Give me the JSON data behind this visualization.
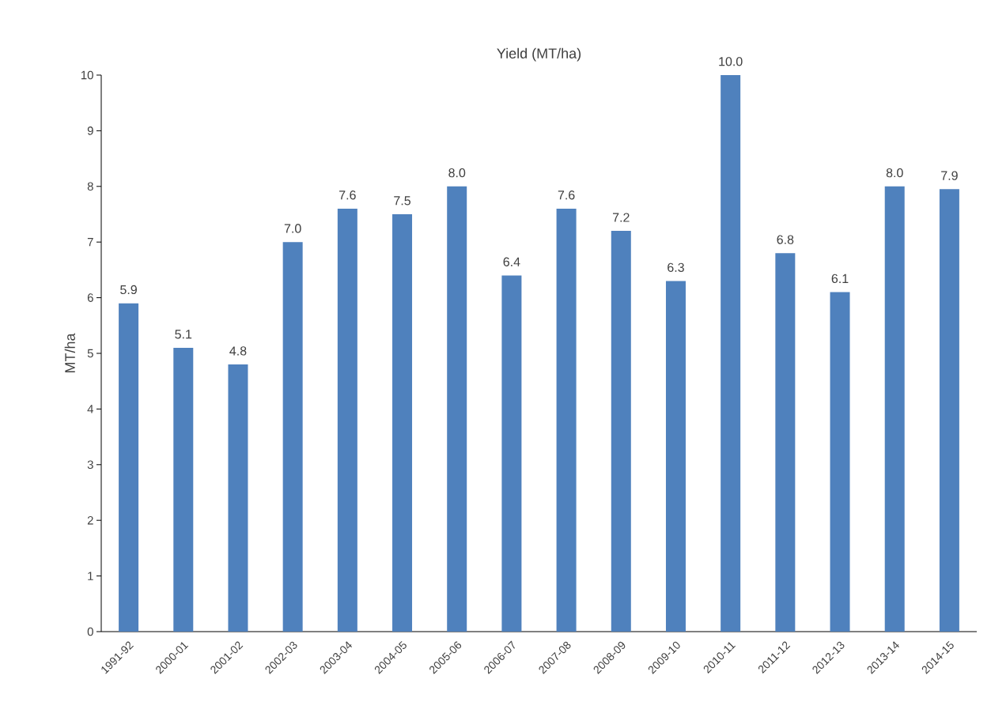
{
  "chart_data": {
    "type": "bar",
    "title": "Yield (MT/ha)",
    "ylabel": "MT/ha",
    "categories": [
      "1991-92",
      "2000-01",
      "2001-02",
      "2002-03",
      "2003-04",
      "2004-05",
      "2005-06",
      "2006-07",
      "2007-08",
      "2008-09",
      "2009-10",
      "2010-11",
      "2011-12",
      "2012-13",
      "2013-14",
      "2014-15"
    ],
    "values": [
      5.9,
      5.1,
      4.8,
      7.0,
      7.6,
      7.5,
      8.0,
      6.4,
      7.6,
      7.2,
      6.3,
      10.0,
      6.8,
      6.1,
      8.0,
      7.95
    ],
    "value_labels": [
      "5.9",
      "5.1",
      "4.8",
      "7.0",
      "7.6",
      "7.5",
      "8.0",
      "6.4",
      "7.6",
      "7.2",
      "6.3",
      "10.0",
      "6.8",
      "6.1",
      "8.0",
      "7.9"
    ],
    "color": "#4f81bd",
    "ylim": [
      0,
      10
    ],
    "yticks": [
      0,
      1,
      2,
      3,
      4,
      5,
      6,
      7,
      8,
      9,
      10
    ],
    "grid": false
  }
}
